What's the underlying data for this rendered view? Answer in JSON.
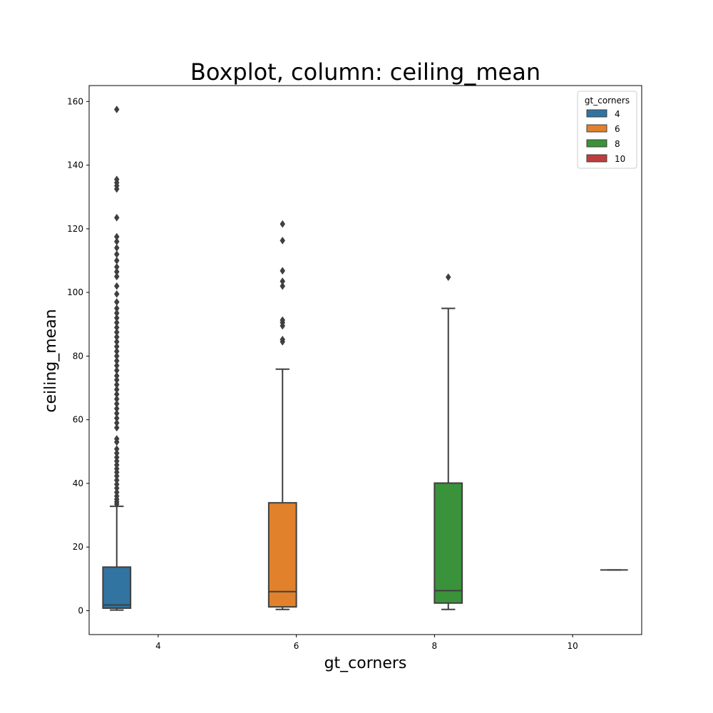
{
  "chart_data": {
    "type": "box",
    "title": "Boxplot, column: ceiling_mean",
    "xlabel": "gt_corners",
    "ylabel": "ceiling_mean",
    "ylim": [
      -7.5,
      165
    ],
    "yticks": [
      0,
      20,
      40,
      60,
      80,
      100,
      120,
      140,
      160
    ],
    "categories": [
      "4",
      "6",
      "8",
      "10"
    ],
    "legend": {
      "title": "gt_corners",
      "placement": "top-right",
      "entries": [
        "4",
        "6",
        "8",
        "10"
      ]
    },
    "series": [
      {
        "name": "4",
        "color": "#3274a1",
        "whisker_low": 0.2,
        "q1": 0.8,
        "median": 1.8,
        "q3": 13.7,
        "whisker_high": 32.8,
        "outliers": [
          33.5,
          34.2,
          35.0,
          36.0,
          37.2,
          38.5,
          39.7,
          41.0,
          42.3,
          43.5,
          44.6,
          45.8,
          47.0,
          48.2,
          49.5,
          50.8,
          53.0,
          54.0,
          57.5,
          59.0,
          60.5,
          62.0,
          63.5,
          65.0,
          66.5,
          68.0,
          69.5,
          71.0,
          72.5,
          73.8,
          75.5,
          77.0,
          78.5,
          80.0,
          81.5,
          83.0,
          84.5,
          86.0,
          87.5,
          89.0,
          90.5,
          92.0,
          93.5,
          95.0,
          97.0,
          99.5,
          102.0,
          105.0,
          106.5,
          108.0,
          110.0,
          112.0,
          114.0,
          116.0,
          117.5,
          123.5,
          132.5,
          133.5,
          134.5,
          135.5,
          157.5
        ]
      },
      {
        "name": "6",
        "color": "#e1812c",
        "whisker_low": 0.4,
        "q1": 1.2,
        "median": 6.0,
        "q3": 33.9,
        "whisker_high": 75.9,
        "outliers": [
          84.5,
          85.2,
          89.5,
          90.5,
          91.3,
          102.0,
          103.5,
          106.8,
          116.3,
          121.5
        ]
      },
      {
        "name": "8",
        "color": "#3a923a",
        "whisker_low": 0.4,
        "q1": 2.4,
        "median": 6.3,
        "q3": 40.1,
        "whisker_high": 95.0,
        "outliers": [
          104.8
        ]
      },
      {
        "name": "10",
        "color": "#c03d3e",
        "whisker_low": 12.8,
        "q1": 12.8,
        "median": 12.8,
        "q3": 12.8,
        "whisker_high": 12.8,
        "outliers": []
      }
    ]
  }
}
